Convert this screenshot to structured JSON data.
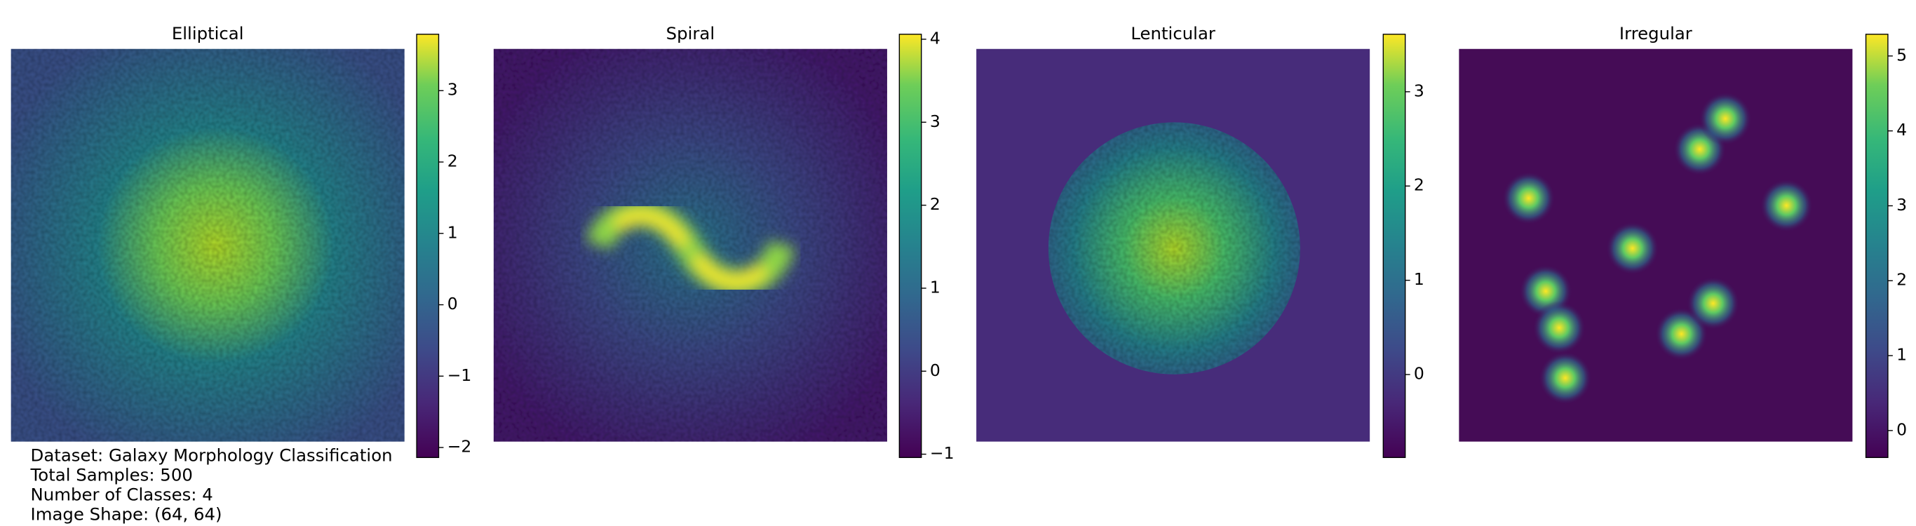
{
  "chart_data": [
    {
      "type": "heatmap",
      "title": "Elliptical",
      "colormap": "viridis",
      "clim": [
        -2.14,
        3.79
      ],
      "cticks": [
        -2,
        -1,
        0,
        1,
        2,
        3
      ],
      "cticks_labels": [
        "−2",
        "−1",
        "0",
        "1",
        "2",
        "3"
      ]
    },
    {
      "type": "heatmap",
      "title": "Spiral",
      "colormap": "viridis",
      "clim": [
        -1.04,
        4.06
      ],
      "cticks": [
        -1,
        0,
        1,
        2,
        3,
        4
      ],
      "cticks_labels": [
        "−1",
        "0",
        "1",
        "2",
        "3",
        "4"
      ]
    },
    {
      "type": "heatmap",
      "title": "Lenticular",
      "colormap": "viridis",
      "clim": [
        -0.88,
        3.61
      ],
      "cticks": [
        0,
        1,
        2,
        3
      ],
      "cticks_labels": [
        "0",
        "1",
        "2",
        "3"
      ]
    },
    {
      "type": "heatmap",
      "title": "Irregular",
      "colormap": "viridis",
      "clim": [
        -0.36,
        5.29
      ],
      "cticks": [
        0,
        1,
        2,
        3,
        4,
        5
      ],
      "cticks_labels": [
        "0",
        "1",
        "2",
        "3",
        "4",
        "5"
      ]
    }
  ],
  "info": [
    "Dataset: Galaxy Morphology Classification",
    "Total Samples: 500",
    "Number of Classes: 4",
    "Image Shape: (64, 64)"
  ]
}
